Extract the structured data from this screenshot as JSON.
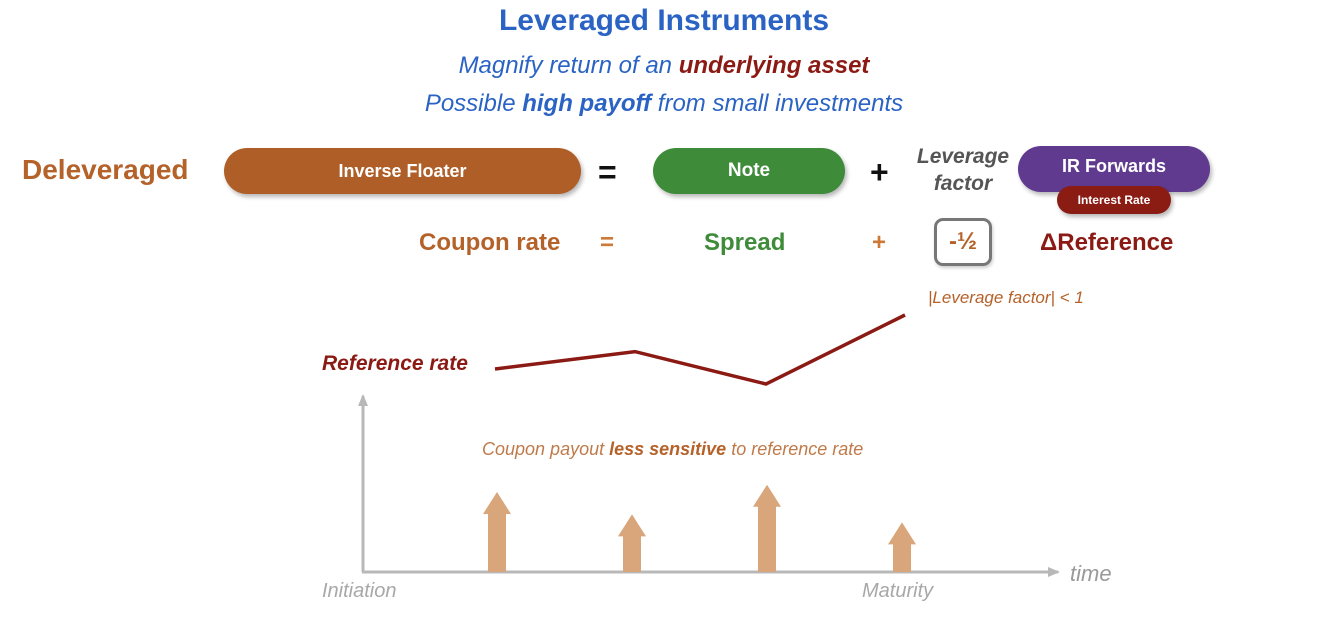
{
  "title": "Leveraged Instruments",
  "subtitle1": {
    "pre": "Magnify return of an ",
    "emph": "underlying asset"
  },
  "subtitle2": {
    "pre": "Possible ",
    "emph": "high payoff",
    "post": " from small investments"
  },
  "equation": {
    "left_label": "Deleveraged",
    "inverse_floater": "Inverse Floater",
    "equals": "=",
    "note": "Note",
    "plus": "+",
    "leverage_factor": "Leverage factor",
    "ir_forwards": "IR Forwards",
    "interest_rate": "Interest Rate"
  },
  "formula": {
    "coupon_rate": "Coupon rate",
    "equals": "=",
    "spread": "Spread",
    "plus": "+",
    "factor": "-½",
    "delta_reference": "ΔReference"
  },
  "leverage_note": "|Leverage factor| < 1",
  "chart": {
    "reference_label": "Reference rate",
    "sensitivity_note": {
      "pre": "Coupon payout ",
      "emph": "less sensitive",
      "post": " to reference rate"
    },
    "x_start_label": "Initiation",
    "x_end_label": "Maturity",
    "time_label": "time",
    "reference_points": [
      0.0,
      0.47,
      0.0,
      1.0
    ],
    "coupon_levels": [
      1.0,
      0.72,
      1.09,
      0.62
    ]
  },
  "colors": {
    "title_blue": "#2a63c4",
    "maroon": "#8b1a14",
    "orange_brown": "#b05e27",
    "green": "#3e8b3a",
    "purple": "#5f3a8f",
    "arrow_tan": "#d9a57a",
    "axis_gray": "#b8b8b8"
  }
}
